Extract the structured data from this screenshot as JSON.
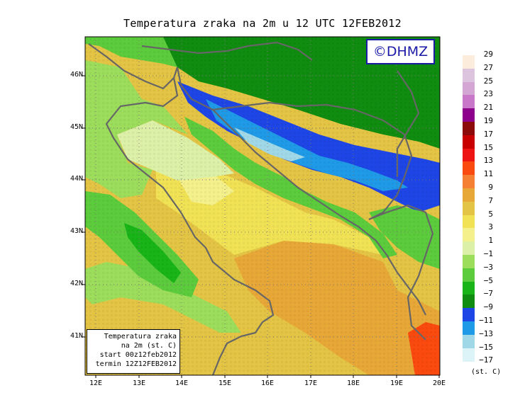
{
  "title": "Temperatura zraka na 2m u 12 UTC 12FEB2012",
  "copyright": "©DHMZ",
  "lat_labels": [
    "46N",
    "45N",
    "44N",
    "43N",
    "42N",
    "41N"
  ],
  "lon_labels": [
    "12E",
    "13E",
    "14E",
    "15E",
    "16E",
    "17E",
    "18E",
    "19E",
    "20E"
  ],
  "info_box": [
    "Temperatura zraka",
    "na 2m (st. C)",
    "start 00z12feb2012",
    "termin 12Z12FEB2012"
  ],
  "legend": {
    "unit": "(st. C)",
    "labels": [
      "29",
      "27",
      "25",
      "23",
      "21",
      "19",
      "17",
      "15",
      "13",
      "11",
      "9",
      "7",
      "5",
      "3",
      "1",
      "−1",
      "−3",
      "−5",
      "−7",
      "−9",
      "−11",
      "−13",
      "−15",
      "−17"
    ],
    "colors": [
      "#fbecdc",
      "#dcc4df",
      "#d4a6d4",
      "#c978c9",
      "#8c008c",
      "#8c0a0a",
      "#c80000",
      "#ee1414",
      "#fb4a10",
      "#f58034",
      "#e8a838",
      "#e4c444",
      "#f0e254",
      "#f4f08c",
      "#dcf0a8",
      "#9cde5c",
      "#5ccc3c",
      "#18b418",
      "#108c10",
      "#1e46e6",
      "#1e9ae6",
      "#a0d8e8",
      "#dcf4f8",
      "#ffffff"
    ]
  },
  "map": {
    "lon_range": [
      11.75,
      20.0
    ],
    "lat_range": [
      40.25,
      46.75
    ],
    "colors": {
      "warm_orange": "#e8a838",
      "amber": "#e4c444",
      "yellow": "#f0e254",
      "pale_yellow": "#f4f08c",
      "cream": "#dcf0a8",
      "lime": "#9cde5c",
      "green": "#5ccc3c",
      "mid_green": "#18b418",
      "dark_green": "#108c10",
      "blue": "#1e46e6",
      "light_blue": "#1e9ae6",
      "ice": "#a0d8e8",
      "red_orange": "#fb4a10"
    }
  }
}
